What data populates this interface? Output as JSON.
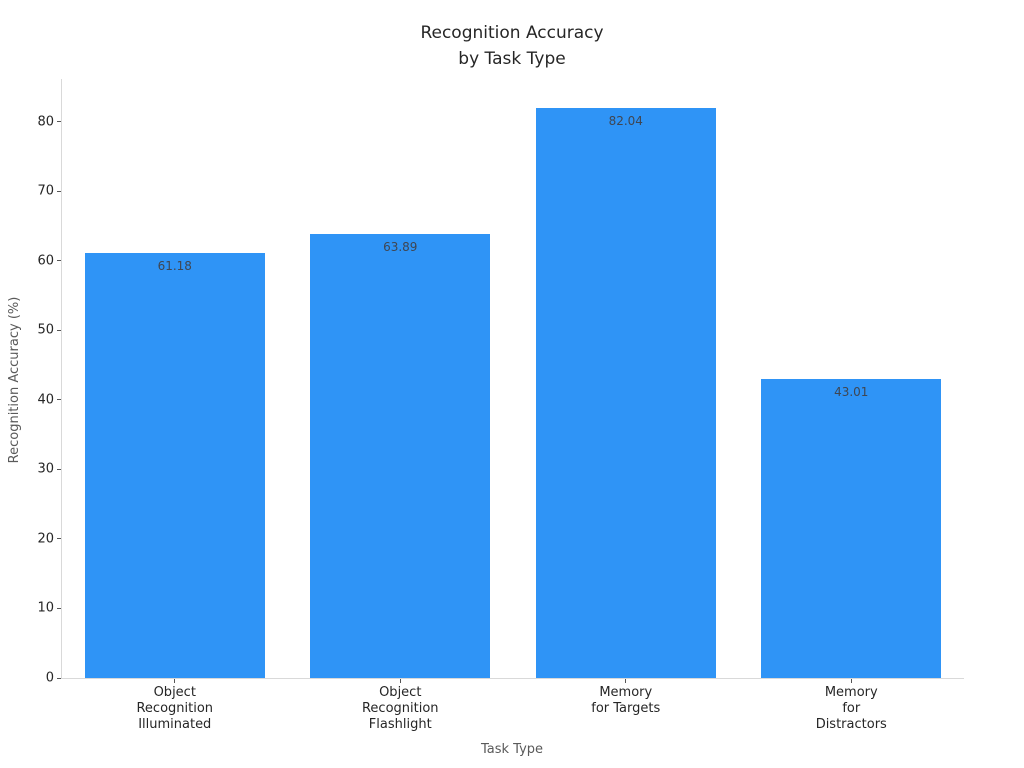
{
  "chart_data": {
    "type": "bar",
    "title": "Recognition Accuracy\nby Task Type",
    "title_lines": [
      "Recognition Accuracy",
      "by Task Type"
    ],
    "xlabel": "Task Type",
    "ylabel": "Recognition Accuracy (%)",
    "categories": [
      "Object Recognition Illuminated",
      "Object Recognition Flashlight",
      "Memory for Targets",
      "Memory for Distractors"
    ],
    "category_label_lines": [
      [
        "Object",
        "Recognition",
        "Illuminated"
      ],
      [
        "Object",
        "Recognition",
        "Flashlight"
      ],
      [
        "Memory",
        "for Targets"
      ],
      [
        "Memory",
        "for",
        "Distractors"
      ]
    ],
    "values": [
      61.18,
      63.89,
      82.04,
      43.01
    ],
    "bar_value_labels": [
      "61.18",
      "63.89",
      "82.04",
      "43.01"
    ],
    "yticks": [
      0,
      10,
      20,
      30,
      40,
      50,
      60,
      70,
      80
    ],
    "ylim": [
      0,
      86.14
    ],
    "bar_color": "#2f94f6",
    "bar_width_fraction": 0.2,
    "grid": false,
    "legend": null,
    "spine_color": "#d9d9d9",
    "tick_color": "#555555",
    "title_color": "#262626",
    "tick_label_color": "#262626",
    "axis_label_color": "#5a5a5a",
    "value_label_color": "#3f4652"
  }
}
